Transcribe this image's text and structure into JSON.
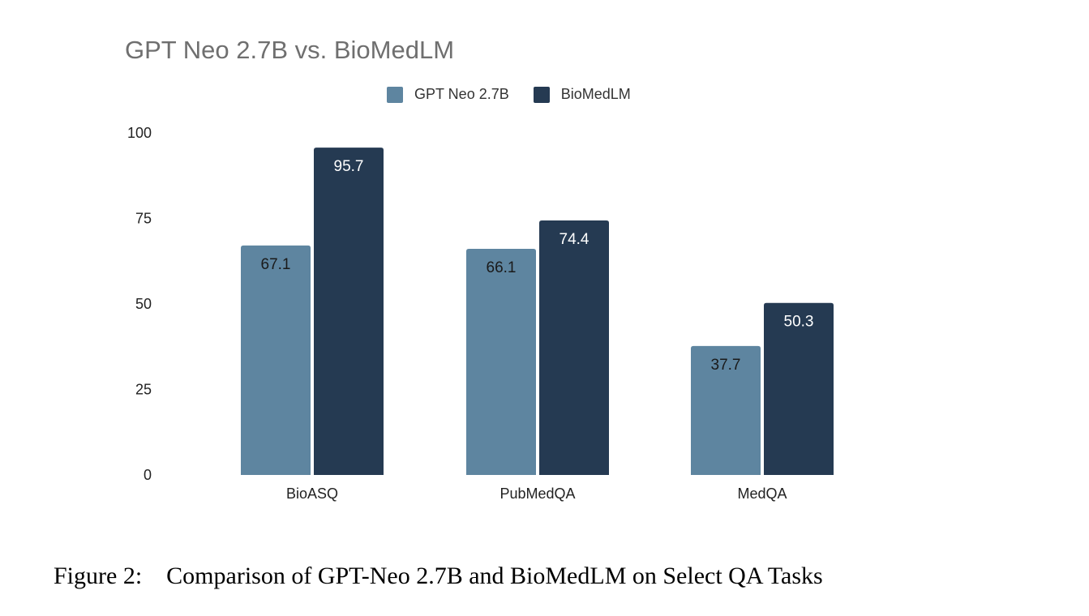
{
  "chart_data": {
    "type": "bar",
    "title": "GPT Neo 2.7B vs. BioMedLM",
    "categories": [
      "BioASQ",
      "PubMedQA",
      "MedQA"
    ],
    "series": [
      {
        "name": "GPT Neo 2.7B",
        "values": [
          67.1,
          66.1,
          37.7
        ],
        "color": "#5e85a0",
        "label_color": "#1a1a1a"
      },
      {
        "name": "BioMedLM",
        "values": [
          95.7,
          74.4,
          50.3
        ],
        "color": "#253a52",
        "label_color": "#ffffff"
      }
    ],
    "data_labels": [
      [
        "67.1",
        "66.1",
        "37.7"
      ],
      [
        "95.7",
        "74.4",
        "50.3"
      ]
    ],
    "yticks": [
      "0",
      "25",
      "50",
      "75",
      "100"
    ],
    "ylim": [
      0,
      100
    ],
    "xlabel": "",
    "ylabel": "",
    "grid": false,
    "legend_position": "top-center"
  },
  "caption": {
    "label": "Figure 2:",
    "text": "Comparison of GPT-Neo 2.7B and BioMedLM on Select QA Tasks"
  }
}
